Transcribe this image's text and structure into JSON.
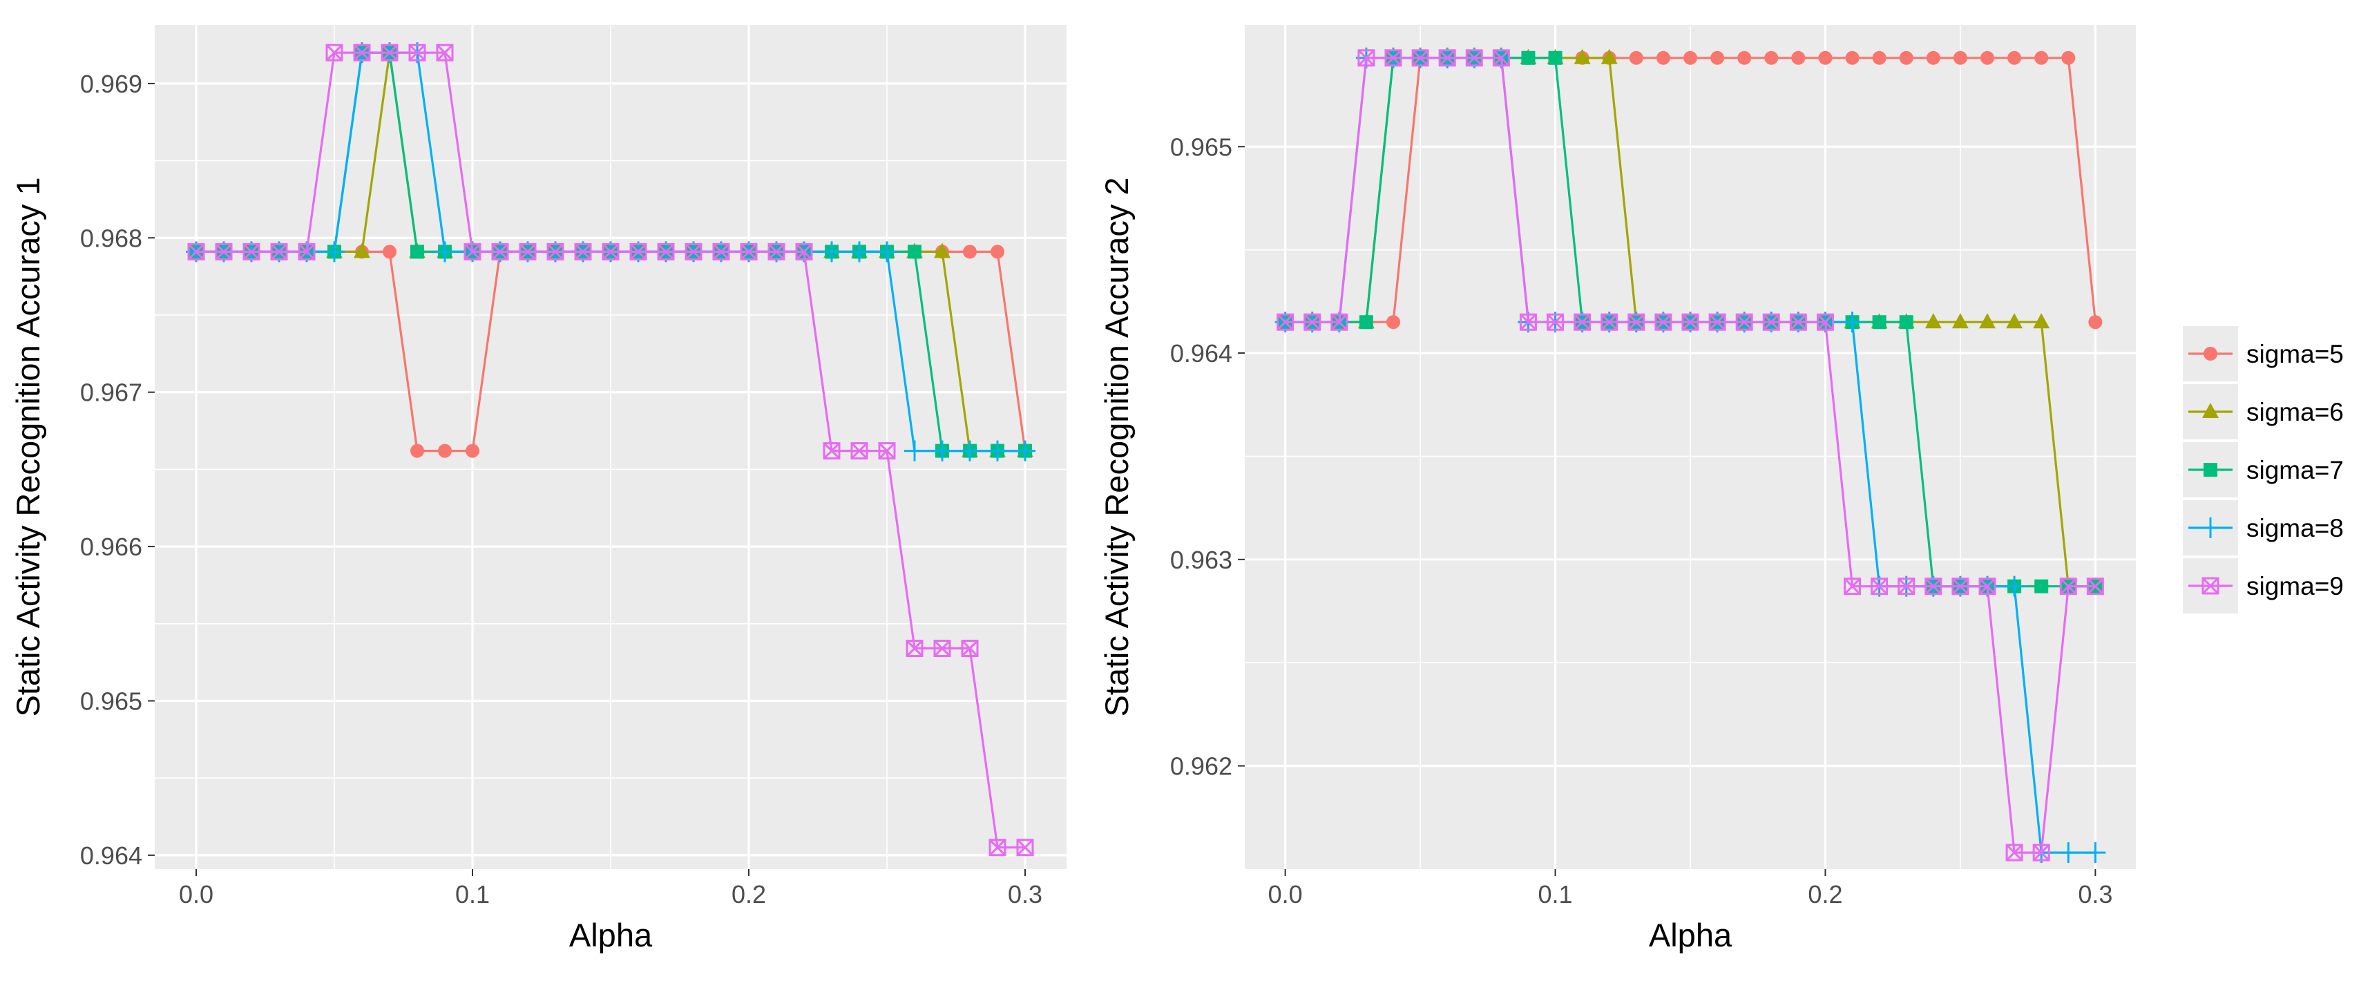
{
  "legend": {
    "entries": [
      {
        "label": "sigma=5",
        "color": "#F8766D",
        "shape": "circle"
      },
      {
        "label": "sigma=6",
        "color": "#A3A500",
        "shape": "triangle"
      },
      {
        "label": "sigma=7",
        "color": "#00BF7D",
        "shape": "square"
      },
      {
        "label": "sigma=8",
        "color": "#00B0F6",
        "shape": "plus"
      },
      {
        "label": "sigma=9",
        "color": "#E76BF3",
        "shape": "boxcross"
      }
    ]
  },
  "chart_data": [
    {
      "type": "line",
      "xlabel": "Alpha",
      "ylabel": "Static Activity Recognition Accuracy 1",
      "xlim": [
        -0.015,
        0.315
      ],
      "ylim": [
        0.96391,
        0.96938
      ],
      "xticks": [
        0.0,
        0.1,
        0.2,
        0.3
      ],
      "xtick_labels": [
        "0.0",
        "0.1",
        "0.2",
        "0.3"
      ],
      "yticks": [
        0.964,
        0.965,
        0.966,
        0.967,
        0.968,
        0.969
      ],
      "ytick_labels": [
        "0.964",
        "0.965",
        "0.966",
        "0.967",
        "0.968",
        "0.969"
      ],
      "x": [
        0.0,
        0.01,
        0.02,
        0.03,
        0.04,
        0.05,
        0.06,
        0.07,
        0.08,
        0.09,
        0.1,
        0.11,
        0.12,
        0.13,
        0.14,
        0.15,
        0.16,
        0.17,
        0.18,
        0.19,
        0.2,
        0.21,
        0.22,
        0.23,
        0.24,
        0.25,
        0.26,
        0.27,
        0.28,
        0.29,
        0.3
      ],
      "series": [
        {
          "name": "sigma=5",
          "values": [
            0.96791,
            0.96791,
            0.96791,
            0.96791,
            0.96791,
            0.96791,
            0.96791,
            0.96791,
            0.96662,
            0.96662,
            0.96662,
            0.96791,
            0.96791,
            0.96791,
            0.96791,
            0.96791,
            0.96791,
            0.96791,
            0.96791,
            0.96791,
            0.96791,
            0.96791,
            0.96791,
            0.96791,
            0.96791,
            0.96791,
            0.96791,
            0.96791,
            0.96791,
            0.96791,
            0.96662
          ]
        },
        {
          "name": "sigma=6",
          "values": [
            0.96791,
            0.96791,
            0.96791,
            0.96791,
            0.96791,
            0.96791,
            0.96791,
            0.9692,
            0.96791,
            0.96791,
            0.96791,
            0.96791,
            0.96791,
            0.96791,
            0.96791,
            0.96791,
            0.96791,
            0.96791,
            0.96791,
            0.96791,
            0.96791,
            0.96791,
            0.96791,
            0.96791,
            0.96791,
            0.96791,
            0.96791,
            0.96791,
            0.96662,
            0.96662,
            0.96662
          ]
        },
        {
          "name": "sigma=7",
          "values": [
            0.96791,
            0.96791,
            0.96791,
            0.96791,
            0.96791,
            0.96791,
            0.9692,
            0.9692,
            0.96791,
            0.96791,
            0.96791,
            0.96791,
            0.96791,
            0.96791,
            0.96791,
            0.96791,
            0.96791,
            0.96791,
            0.96791,
            0.96791,
            0.96791,
            0.96791,
            0.96791,
            0.96791,
            0.96791,
            0.96791,
            0.96791,
            0.96662,
            0.96662,
            0.96662,
            0.96662
          ]
        },
        {
          "name": "sigma=8",
          "values": [
            0.96791,
            0.96791,
            0.96791,
            0.96791,
            0.96791,
            0.96791,
            0.9692,
            0.9692,
            0.9692,
            0.96791,
            0.96791,
            0.96791,
            0.96791,
            0.96791,
            0.96791,
            0.96791,
            0.96791,
            0.96791,
            0.96791,
            0.96791,
            0.96791,
            0.96791,
            0.96791,
            0.96791,
            0.96791,
            0.96791,
            0.96662,
            0.96662,
            0.96662,
            0.96662,
            0.96662
          ]
        },
        {
          "name": "sigma=9",
          "values": [
            0.96791,
            0.96791,
            0.96791,
            0.96791,
            0.96791,
            0.9692,
            0.9692,
            0.9692,
            0.9692,
            0.9692,
            0.96791,
            0.96791,
            0.96791,
            0.96791,
            0.96791,
            0.96791,
            0.96791,
            0.96791,
            0.96791,
            0.96791,
            0.96791,
            0.96791,
            0.96791,
            0.96662,
            0.96662,
            0.96662,
            0.96534,
            0.96534,
            0.96534,
            0.96405,
            0.96405
          ]
        }
      ]
    },
    {
      "type": "line",
      "xlabel": "Alpha",
      "ylabel": "Static Activity Recognition Accuracy 2",
      "xlim": [
        -0.015,
        0.315
      ],
      "ylim": [
        0.9615,
        0.96559
      ],
      "xticks": [
        0.0,
        0.1,
        0.2,
        0.3
      ],
      "xtick_labels": [
        "0.0",
        "0.1",
        "0.2",
        "0.3"
      ],
      "yticks": [
        0.962,
        0.963,
        0.964,
        0.965
      ],
      "ytick_labels": [
        "0.962",
        "0.963",
        "0.964",
        "0.965"
      ],
      "x": [
        0.0,
        0.01,
        0.02,
        0.03,
        0.04,
        0.05,
        0.06,
        0.07,
        0.08,
        0.09,
        0.1,
        0.11,
        0.12,
        0.13,
        0.14,
        0.15,
        0.16,
        0.17,
        0.18,
        0.19,
        0.2,
        0.21,
        0.22,
        0.23,
        0.24,
        0.25,
        0.26,
        0.27,
        0.28,
        0.29,
        0.3
      ],
      "series": [
        {
          "name": "sigma=5",
          "values": [
            0.96415,
            0.96415,
            0.96415,
            0.96415,
            0.96415,
            0.96543,
            0.96543,
            0.96543,
            0.96543,
            0.96543,
            0.96543,
            0.96543,
            0.96543,
            0.96543,
            0.96543,
            0.96543,
            0.96543,
            0.96543,
            0.96543,
            0.96543,
            0.96543,
            0.96543,
            0.96543,
            0.96543,
            0.96543,
            0.96543,
            0.96543,
            0.96543,
            0.96543,
            0.96543,
            0.96415
          ]
        },
        {
          "name": "sigma=6",
          "values": [
            0.96415,
            0.96415,
            0.96415,
            0.96415,
            0.96543,
            0.96543,
            0.96543,
            0.96543,
            0.96543,
            0.96543,
            0.96543,
            0.96543,
            0.96543,
            0.96415,
            0.96415,
            0.96415,
            0.96415,
            0.96415,
            0.96415,
            0.96415,
            0.96415,
            0.96415,
            0.96415,
            0.96415,
            0.96415,
            0.96415,
            0.96415,
            0.96415,
            0.96415,
            0.96287,
            0.96287
          ]
        },
        {
          "name": "sigma=7",
          "values": [
            0.96415,
            0.96415,
            0.96415,
            0.96415,
            0.96543,
            0.96543,
            0.96543,
            0.96543,
            0.96543,
            0.96543,
            0.96543,
            0.96415,
            0.96415,
            0.96415,
            0.96415,
            0.96415,
            0.96415,
            0.96415,
            0.96415,
            0.96415,
            0.96415,
            0.96415,
            0.96415,
            0.96415,
            0.96287,
            0.96287,
            0.96287,
            0.96287,
            0.96287,
            0.96287,
            0.96287
          ]
        },
        {
          "name": "sigma=8",
          "values": [
            0.96415,
            0.96415,
            0.96415,
            0.96543,
            0.96543,
            0.96543,
            0.96543,
            0.96543,
            0.96543,
            0.96415,
            0.96415,
            0.96415,
            0.96415,
            0.96415,
            0.96415,
            0.96415,
            0.96415,
            0.96415,
            0.96415,
            0.96415,
            0.96415,
            0.96415,
            0.96287,
            0.96287,
            0.96287,
            0.96287,
            0.96287,
            0.96287,
            0.96158,
            0.96158,
            0.96158
          ]
        },
        {
          "name": "sigma=9",
          "values": [
            0.96415,
            0.96415,
            0.96415,
            0.96543,
            0.96543,
            0.96543,
            0.96543,
            0.96543,
            0.96543,
            0.96415,
            0.96415,
            0.96415,
            0.96415,
            0.96415,
            0.96415,
            0.96415,
            0.96415,
            0.96415,
            0.96415,
            0.96415,
            0.96415,
            0.96287,
            0.96287,
            0.96287,
            0.96287,
            0.96287,
            0.96287,
            0.96158,
            0.96158,
            0.96287,
            0.96287
          ]
        }
      ]
    }
  ]
}
